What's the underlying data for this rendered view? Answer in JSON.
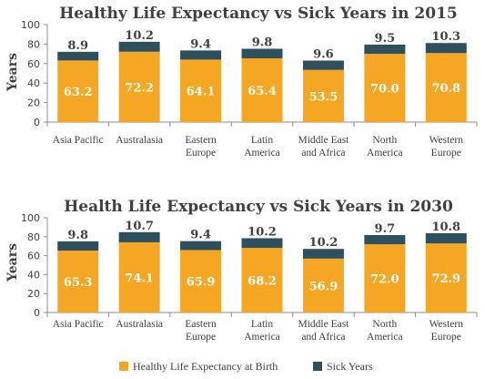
{
  "chart_data": [
    {
      "type": "bar",
      "stacked": true,
      "title": "Healthy Life Expectancy vs Sick Years in 2015",
      "ylabel": "Years",
      "ylim": [
        0,
        100
      ],
      "yticks": [
        0,
        20,
        40,
        60,
        80,
        100
      ],
      "categories": [
        [
          "Asia Pacific"
        ],
        [
          "Australasia"
        ],
        [
          "Eastern",
          "Europe"
        ],
        [
          "Latin",
          "America"
        ],
        [
          "Middle East",
          "and Africa"
        ],
        [
          "North",
          "America"
        ],
        [
          "Western",
          "Europe"
        ]
      ],
      "series": [
        {
          "name": "Healthy Life Expectancy at Birth",
          "values": [
            63.2,
            72.2,
            64.1,
            65.4,
            53.5,
            70.0,
            70.8
          ]
        },
        {
          "name": "Sick Years",
          "values": [
            8.9,
            10.2,
            9.4,
            9.8,
            9.6,
            9.5,
            10.3
          ]
        }
      ]
    },
    {
      "type": "bar",
      "stacked": true,
      "title": "Health Life Expectancy vs Sick Years in 2030",
      "ylabel": "Years",
      "ylim": [
        0,
        100
      ],
      "yticks": [
        0,
        20,
        40,
        60,
        80,
        100
      ],
      "categories": [
        [
          "Asia Pacific"
        ],
        [
          "Australasia"
        ],
        [
          "Eastern",
          "Europe"
        ],
        [
          "Latin",
          "America"
        ],
        [
          "Middle East",
          "and Africa"
        ],
        [
          "North",
          "America"
        ],
        [
          "Western",
          "Europe"
        ]
      ],
      "series": [
        {
          "name": "Healthy Life Expectancy at Birth",
          "values": [
            65.3,
            74.1,
            65.9,
            68.2,
            56.9,
            72.0,
            72.9
          ]
        },
        {
          "name": "Sick Years",
          "values": [
            9.8,
            10.7,
            9.4,
            10.2,
            10.2,
            9.7,
            10.8
          ]
        }
      ]
    }
  ],
  "legend": {
    "placement": "bottom",
    "items": [
      {
        "label": "Healthy Life Expectancy at Birth",
        "color": "#F5A623"
      },
      {
        "label": "Sick Years",
        "color": "#2E4F5E"
      }
    ]
  },
  "colors": {
    "healthy": "#F5A623",
    "sick": "#2E4F5E",
    "axis": "#8c8c8c",
    "text": "#404040"
  }
}
